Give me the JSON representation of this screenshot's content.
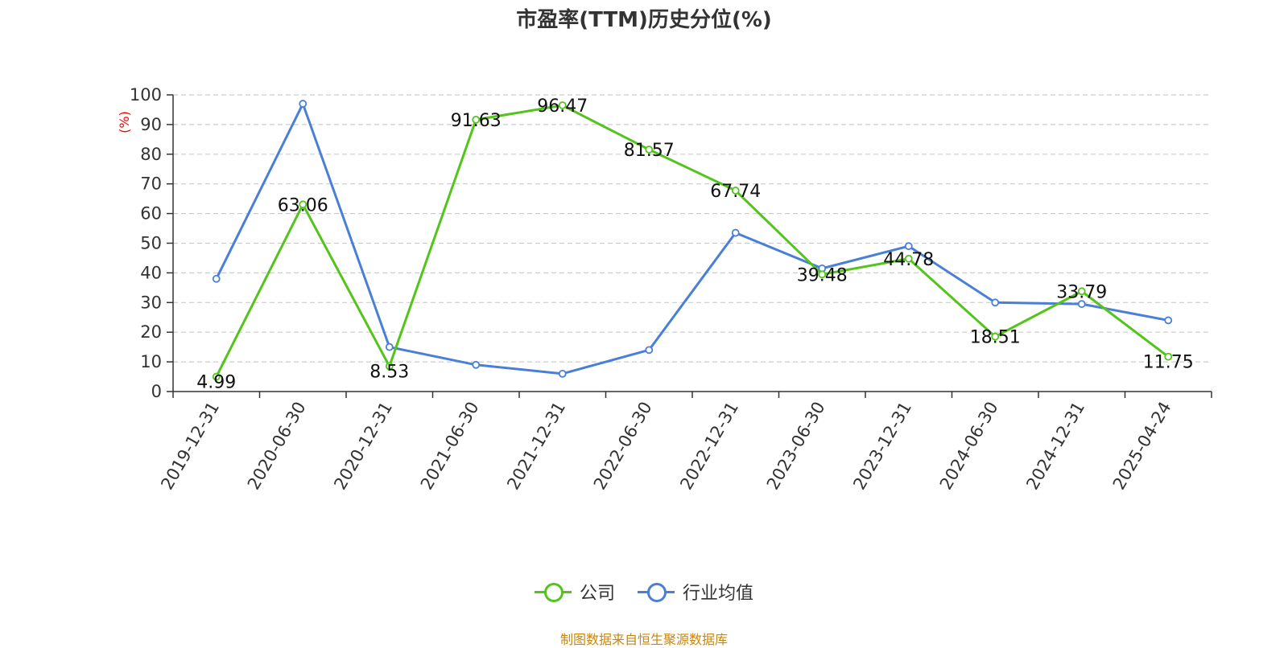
{
  "chart_data": {
    "type": "line",
    "title": "市盈率(TTM)历史分位(%)",
    "ylabel": "(%)",
    "ylim": [
      0,
      100
    ],
    "yticks": [
      0,
      10,
      20,
      30,
      40,
      50,
      60,
      70,
      80,
      90,
      100
    ],
    "grid": true,
    "legend_position": "bottom-center",
    "categories": [
      "2019-12-31",
      "2020-06-30",
      "2020-12-31",
      "2021-06-30",
      "2021-12-31",
      "2022-06-30",
      "2022-12-31",
      "2023-06-30",
      "2023-12-31",
      "2024-06-30",
      "2024-12-31",
      "2025-04-24"
    ],
    "series": [
      {
        "name": "公司",
        "color": "#52c41a",
        "values": [
          4.99,
          63.06,
          8.53,
          91.63,
          96.47,
          81.57,
          67.74,
          39.48,
          44.78,
          18.51,
          33.79,
          11.75
        ],
        "labels": [
          "4.99",
          "63.06",
          "8.53",
          "91.63",
          "96.47",
          "81.57",
          "67.74",
          "39.48",
          "44.78",
          "18.51",
          "33.79",
          "11.75"
        ]
      },
      {
        "name": "行业均值",
        "color": "#4a7fd8",
        "values": [
          38,
          97,
          15,
          9,
          6,
          14,
          53.5,
          41.5,
          49,
          30,
          29.5,
          24
        ]
      }
    ],
    "source": "制图数据来自恒生聚源数据库",
    "source_color": "#c8860a",
    "ylabel_color": "#ff0000"
  }
}
